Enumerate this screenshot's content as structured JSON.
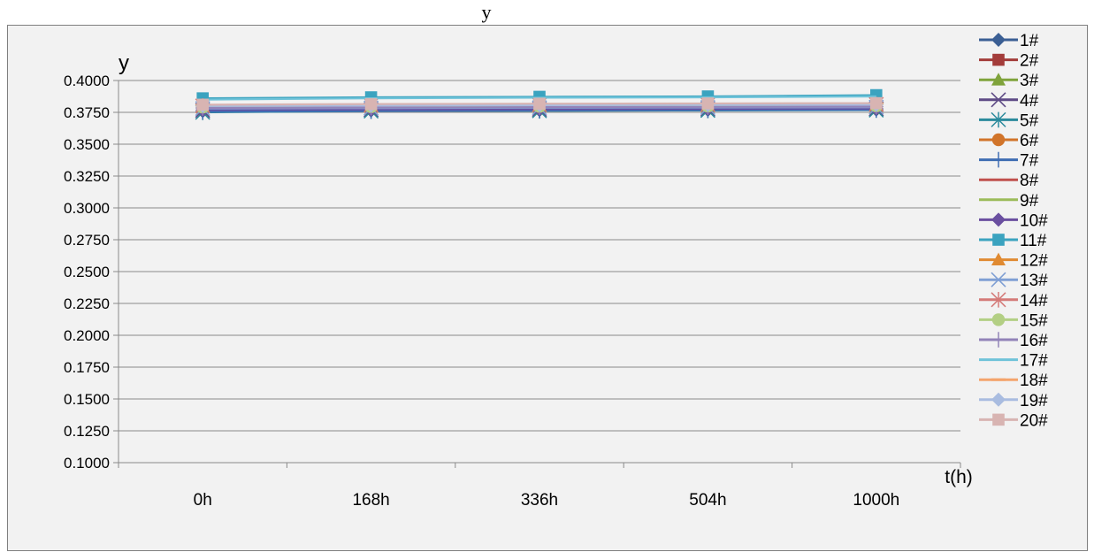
{
  "chart_data": {
    "type": "line",
    "title": "y",
    "ylabel": "y",
    "xlabel": "t(h)",
    "categories": [
      "0h",
      "168h",
      "336h",
      "504h",
      "1000h"
    ],
    "ylim": [
      0.1,
      0.4
    ],
    "yticks": [
      "0.1000",
      "0.1250",
      "0.1500",
      "0.1750",
      "0.2000",
      "0.2250",
      "0.2500",
      "0.2750",
      "0.3000",
      "0.3250",
      "0.3500",
      "0.3750",
      "0.4000"
    ],
    "grid": true,
    "legend_position": "right",
    "series": [
      {
        "name": "1#",
        "color": "#3b5f94",
        "marker": "diamond",
        "values": [
          0.376,
          0.3765,
          0.3768,
          0.377,
          0.3772
        ]
      },
      {
        "name": "2#",
        "color": "#a33c3a",
        "marker": "square",
        "values": [
          0.378,
          0.3785,
          0.3788,
          0.379,
          0.3792
        ]
      },
      {
        "name": "3#",
        "color": "#7fa33b",
        "marker": "triangle",
        "values": [
          0.377,
          0.3775,
          0.3778,
          0.378,
          0.3782
        ]
      },
      {
        "name": "4#",
        "color": "#5e4b86",
        "marker": "x",
        "values": [
          0.3765,
          0.377,
          0.3773,
          0.3775,
          0.3777
        ]
      },
      {
        "name": "5#",
        "color": "#2b8a9c",
        "marker": "star",
        "values": [
          0.375,
          0.376,
          0.3762,
          0.3765,
          0.3768
        ]
      },
      {
        "name": "6#",
        "color": "#d1742a",
        "marker": "circle",
        "values": [
          0.379,
          0.3795,
          0.3798,
          0.38,
          0.3802
        ]
      },
      {
        "name": "7#",
        "color": "#3f6db3",
        "marker": "plus",
        "values": [
          0.3755,
          0.376,
          0.3765,
          0.3768,
          0.377
        ]
      },
      {
        "name": "8#",
        "color": "#c0504d",
        "marker": "none",
        "values": [
          0.3785,
          0.379,
          0.3793,
          0.3795,
          0.3797
        ]
      },
      {
        "name": "9#",
        "color": "#9bbb59",
        "marker": "none",
        "values": [
          0.3775,
          0.378,
          0.3783,
          0.3785,
          0.3787
        ]
      },
      {
        "name": "10#",
        "color": "#6a4fa0",
        "marker": "diamond",
        "values": [
          0.377,
          0.3773,
          0.3776,
          0.3778,
          0.378
        ]
      },
      {
        "name": "11#",
        "color": "#3ba3bf",
        "marker": "square",
        "values": [
          0.386,
          0.3868,
          0.3872,
          0.3875,
          0.3885
        ]
      },
      {
        "name": "12#",
        "color": "#e08a32",
        "marker": "triangle",
        "values": [
          0.3795,
          0.38,
          0.3803,
          0.3805,
          0.3808
        ]
      },
      {
        "name": "13#",
        "color": "#7f9fd4",
        "marker": "x",
        "values": [
          0.378,
          0.3783,
          0.3786,
          0.3788,
          0.379
        ]
      },
      {
        "name": "14#",
        "color": "#d47a78",
        "marker": "star",
        "values": [
          0.38,
          0.3805,
          0.3808,
          0.381,
          0.3812
        ]
      },
      {
        "name": "15#",
        "color": "#b3cf84",
        "marker": "circle",
        "values": [
          0.379,
          0.3793,
          0.3796,
          0.3798,
          0.38
        ]
      },
      {
        "name": "16#",
        "color": "#9283b8",
        "marker": "plus",
        "values": [
          0.3785,
          0.3788,
          0.3791,
          0.3793,
          0.3795
        ]
      },
      {
        "name": "17#",
        "color": "#6fc3d9",
        "marker": "none",
        "values": [
          0.385,
          0.386,
          0.3865,
          0.3868,
          0.3875
        ]
      },
      {
        "name": "18#",
        "color": "#f4a46c",
        "marker": "dash",
        "values": [
          0.3805,
          0.381,
          0.3813,
          0.3815,
          0.3818
        ]
      },
      {
        "name": "19#",
        "color": "#a9bce0",
        "marker": "diamond",
        "values": [
          0.38,
          0.3803,
          0.3806,
          0.3808,
          0.381
        ]
      },
      {
        "name": "20#",
        "color": "#d8b4b2",
        "marker": "square",
        "values": [
          0.381,
          0.3815,
          0.3818,
          0.382,
          0.3822
        ]
      }
    ]
  }
}
